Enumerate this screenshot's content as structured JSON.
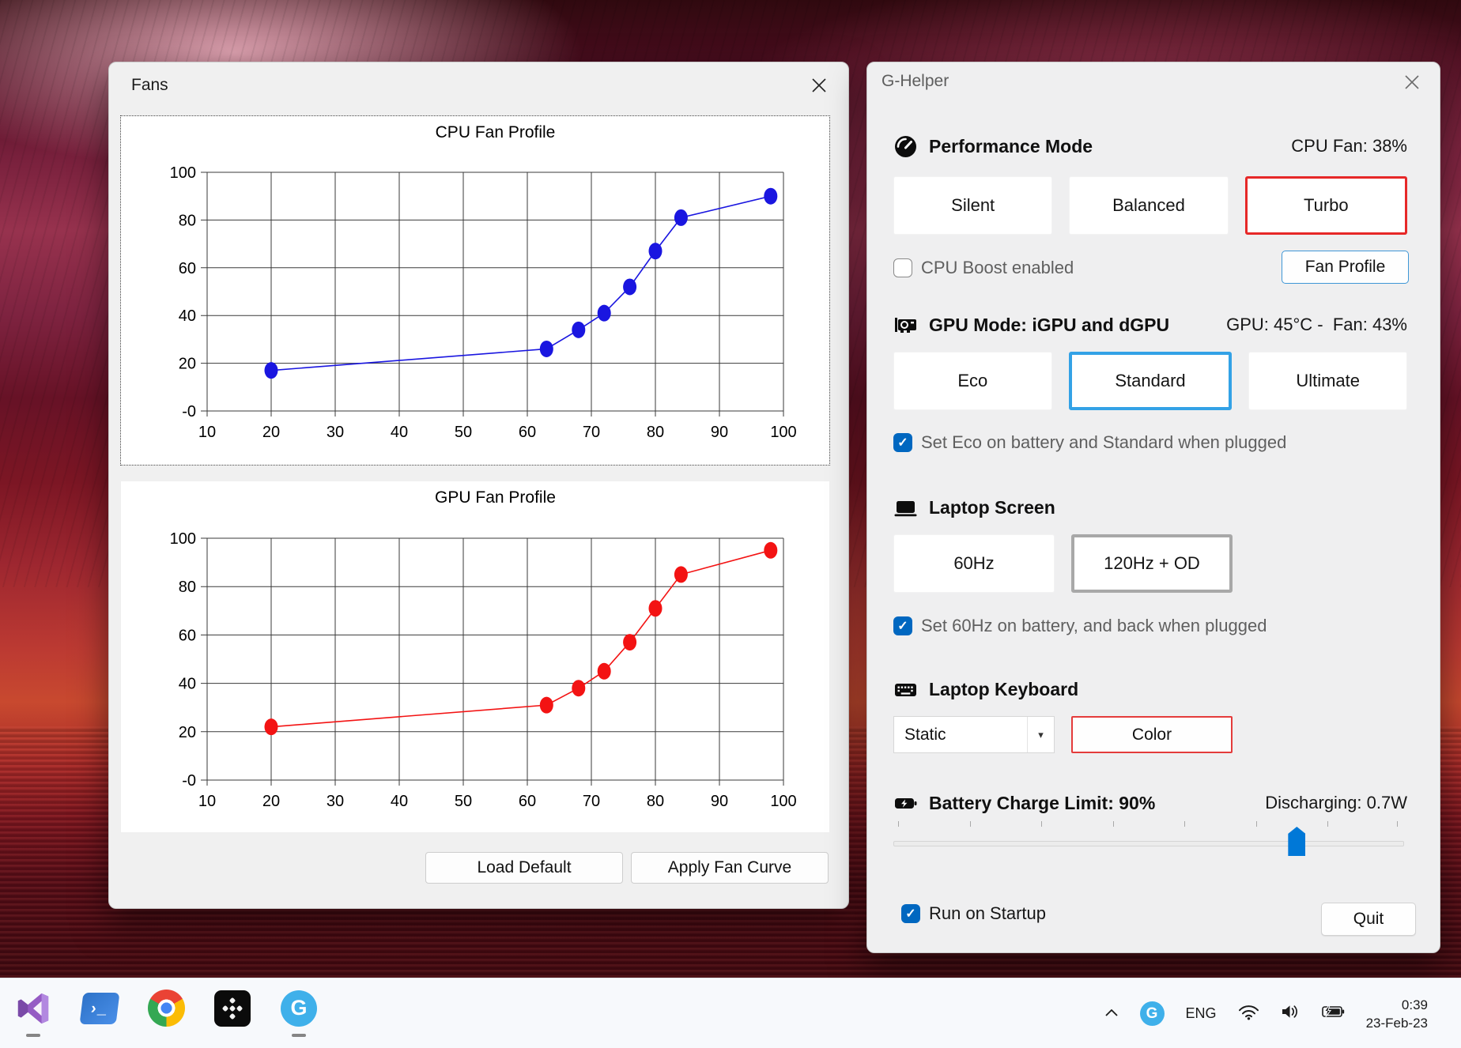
{
  "colors": {
    "accent": "#0078d7",
    "performance_selected_border": "#e62828",
    "gpu_selected_border": "#33a2e6",
    "screen_selected_border": "#a8a8a8",
    "keyboard_color_border": "#e43b3b",
    "checkbox_checked": "#0067c0",
    "cpu_series": "#1a16e0",
    "gpu_series": "#f31313",
    "g_helper_icon_blue": "#3fb0ea"
  },
  "glyphs": {
    "check": "✓",
    "dropdown_arrow": "▾"
  },
  "fans_window": {
    "title": "Fans",
    "load_default_button": "Load Default",
    "apply_fan_curve_button": "Apply Fan Curve"
  },
  "chart_data": [
    {
      "type": "line",
      "title": "CPU Fan Profile",
      "series": [
        {
          "name": "CPU fan curve",
          "color": "#1a16e0",
          "x": [
            20,
            63,
            68,
            72,
            76,
            80,
            84,
            98
          ],
          "y": [
            17,
            26,
            34,
            41,
            52,
            67,
            81,
            90
          ]
        }
      ],
      "xlim": [
        10,
        100
      ],
      "ylim": [
        0,
        100
      ],
      "x_ticks": [
        10,
        20,
        30,
        40,
        50,
        60,
        70,
        80,
        90,
        100
      ],
      "y_ticks": [
        0,
        20,
        40,
        60,
        80,
        100
      ],
      "y_tick_labels": [
        "-0",
        "20",
        "40",
        "60",
        "80",
        "100"
      ],
      "xlabel": "",
      "ylabel": "",
      "grid": true,
      "legend": false
    },
    {
      "type": "line",
      "title": "GPU Fan Profile",
      "series": [
        {
          "name": "GPU fan curve",
          "color": "#f31313",
          "x": [
            20,
            63,
            68,
            72,
            76,
            80,
            84,
            98
          ],
          "y": [
            22,
            31,
            38,
            45,
            57,
            71,
            85,
            95
          ]
        }
      ],
      "xlim": [
        10,
        100
      ],
      "ylim": [
        0,
        100
      ],
      "x_ticks": [
        10,
        20,
        30,
        40,
        50,
        60,
        70,
        80,
        90,
        100
      ],
      "y_ticks": [
        0,
        20,
        40,
        60,
        80,
        100
      ],
      "y_tick_labels": [
        "-0",
        "20",
        "40",
        "60",
        "80",
        "100"
      ],
      "xlabel": "",
      "ylabel": "",
      "grid": true,
      "legend": false
    }
  ],
  "ghelper_window": {
    "title": "G-Helper",
    "performance": {
      "header": "Performance Mode",
      "status": "CPU Fan: 38%",
      "buttons": [
        "Silent",
        "Balanced",
        "Turbo"
      ],
      "selected": "Turbo",
      "cpu_boost_label": "CPU Boost enabled",
      "cpu_boost_checked": false,
      "fan_profile_button": "Fan Profile"
    },
    "gpu": {
      "header": "GPU Mode: iGPU and dGPU",
      "status": "GPU: 45°C -  Fan: 43%",
      "buttons": [
        "Eco",
        "Standard",
        "Ultimate"
      ],
      "selected": "Standard",
      "checkbox_label": "Set Eco on battery and Standard when plugged",
      "checkbox_checked": true
    },
    "screen": {
      "header": "Laptop Screen",
      "buttons": [
        "60Hz",
        "120Hz + OD"
      ],
      "selected": "120Hz + OD",
      "checkbox_label": "Set 60Hz on battery, and back when plugged",
      "checkbox_checked": true
    },
    "keyboard": {
      "header": "Laptop Keyboard",
      "mode_dropdown_value": "Static",
      "color_button": "Color"
    },
    "battery": {
      "header": "Battery Charge Limit: 90%",
      "status": "Discharging: 0.7W",
      "slider_percent": 79
    },
    "footer": {
      "run_on_startup_label": "Run on Startup",
      "run_on_startup_checked": true,
      "quit_button": "Quit"
    }
  },
  "taskbar": {
    "apps": [
      {
        "name": "visual-studio",
        "running": true
      },
      {
        "name": "powershell",
        "running": false
      },
      {
        "name": "chrome",
        "running": false
      },
      {
        "name": "black-tile-app",
        "running": false
      },
      {
        "name": "g-helper",
        "running": true
      }
    ],
    "tray": {
      "language": "ENG",
      "time": "0:39",
      "date": "23-Feb-23"
    }
  }
}
